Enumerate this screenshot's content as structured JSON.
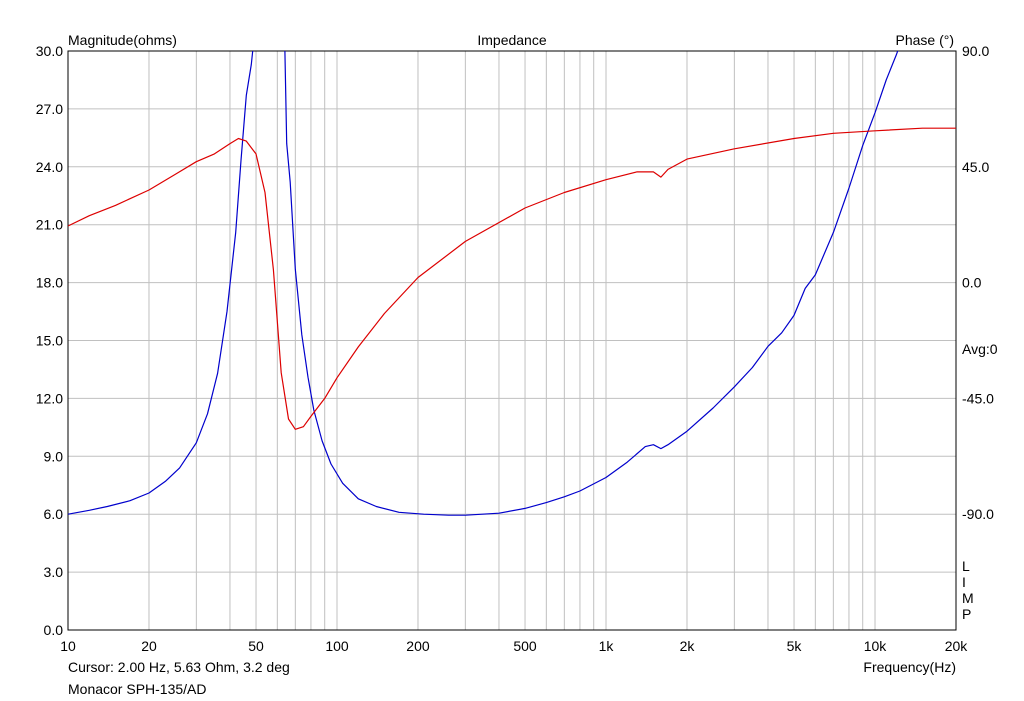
{
  "chart_data": {
    "type": "line",
    "title": "Impedance",
    "ylabel": "Magnitude(ohms)",
    "y2label": "Phase (°)",
    "xlabel": "Frequency(Hz)",
    "x_scale": "log",
    "xlim": [
      10,
      20000
    ],
    "ylim": [
      0,
      30
    ],
    "y2lim": [
      -135,
      90
    ],
    "grid": true,
    "x_ticks": [
      10,
      20,
      50,
      100,
      200,
      500,
      1000,
      2000,
      5000,
      10000,
      20000
    ],
    "x_tick_labels": [
      "10",
      "20",
      "50",
      "100",
      "200",
      "500",
      "1k",
      "2k",
      "5k",
      "10k",
      "20k"
    ],
    "y_ticks": [
      0,
      3,
      6,
      9,
      12,
      15,
      18,
      21,
      24,
      27,
      30
    ],
    "y_tick_labels": [
      "0.0",
      "3.0",
      "6.0",
      "9.0",
      "12.0",
      "15.0",
      "18.0",
      "21.0",
      "24.0",
      "27.0",
      "30.0"
    ],
    "y2_ticks": [
      -90,
      -45,
      0,
      45,
      90
    ],
    "y2_tick_labels": [
      "-90.0",
      "-45.0",
      "0.0",
      "45.0",
      "90.0"
    ],
    "avg_label": "Avg:0",
    "limp_letters": [
      "L",
      "I",
      "M",
      "P"
    ],
    "series": [
      {
        "axis": "left",
        "color": "#0000cc",
        "x": [
          10,
          12,
          14,
          17,
          20,
          23,
          26,
          30,
          33,
          36,
          39,
          42,
          44,
          46,
          48,
          49,
          50,
          63,
          64,
          65,
          67,
          70,
          74,
          78,
          82,
          88,
          95,
          105,
          120,
          140,
          170,
          210,
          260,
          300,
          400,
          500,
          600,
          700,
          800,
          1000,
          1200,
          1400,
          1500,
          1600,
          1700,
          2000,
          2500,
          3000,
          3500,
          4000,
          4500,
          5000,
          5500,
          6000,
          7000,
          8000,
          9000,
          10000,
          11000,
          12000,
          12500
        ],
        "y": [
          6.0,
          6.2,
          6.4,
          6.7,
          7.1,
          7.7,
          8.4,
          9.7,
          11.2,
          13.3,
          16.5,
          20.6,
          24.4,
          27.7,
          29.3,
          30.5,
          31.8,
          31.8,
          30.0,
          25.2,
          23.2,
          18.7,
          15.3,
          13.1,
          11.4,
          9.8,
          8.6,
          7.6,
          6.8,
          6.4,
          6.1,
          6.0,
          5.95,
          5.95,
          6.05,
          6.3,
          6.6,
          6.9,
          7.2,
          7.9,
          8.7,
          9.5,
          9.6,
          9.4,
          9.6,
          10.3,
          11.5,
          12.6,
          13.6,
          14.7,
          15.4,
          16.3,
          17.7,
          18.4,
          20.6,
          22.9,
          25.1,
          26.8,
          28.5,
          29.8,
          30.5
        ]
      },
      {
        "axis": "right",
        "color": "#dd0000",
        "x": [
          10,
          12,
          15,
          20,
          25,
          30,
          35,
          40,
          43,
          46,
          50,
          54,
          58,
          62,
          66,
          70,
          75,
          80,
          90,
          100,
          120,
          150,
          200,
          300,
          500,
          700,
          1000,
          1300,
          1500,
          1600,
          1700,
          2000,
          3000,
          5000,
          7000,
          10000,
          15000,
          20000
        ],
        "y": [
          22,
          26,
          30,
          36,
          42,
          47,
          50,
          54,
          56,
          55,
          50,
          35,
          5,
          -35,
          -53,
          -57,
          -56,
          -52,
          -45,
          -37,
          -25,
          -12,
          2,
          16,
          29,
          35,
          40,
          43,
          43,
          41,
          44,
          48,
          52,
          56,
          58,
          59,
          60,
          60
        ]
      }
    ]
  },
  "footer": {
    "cursor_text": "Cursor: 2.00 Hz, 5.63 Ohm, 3.2 deg",
    "device_name": "Monacor SPH-135/AD"
  }
}
